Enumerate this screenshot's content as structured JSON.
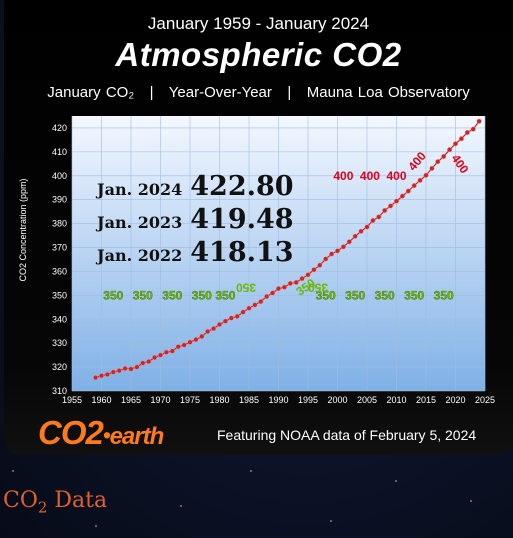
{
  "header": {
    "date_range": "January 1959 - January 2024",
    "title": "Atmospheric",
    "title_co2": "CO2",
    "subtitle": "January CO₂   |   Year-Over-Year   |   Mauna Loa Observatory"
  },
  "callouts": [
    {
      "label": "Jan. 2024",
      "value": "422.80"
    },
    {
      "label": "Jan. 2023",
      "value": "419.48"
    },
    {
      "label": "Jan. 2022",
      "value": "418.13"
    }
  ],
  "markers": {
    "green_value": "350",
    "red_value": "400"
  },
  "branding": {
    "logo_main": "CO2",
    "logo_sep": "•",
    "logo_tail": "earth",
    "featuring": "Featuring NOAA data of February 5, 2024"
  },
  "footer": {
    "label": "CO",
    "label_sub": "2",
    "label_tail": " Data"
  },
  "colors": {
    "accent_orange": "#ff7a1a",
    "series": "#c62828",
    "marker_green": "#6bb800",
    "marker_red": "#e0001a",
    "plot_top": "#f4f8ff",
    "plot_bottom": "#7fb0e6"
  },
  "chart_data": {
    "type": "line",
    "xlabel": "",
    "ylabel": "CO2 Concentration (ppm)",
    "xlim": [
      1955,
      2025
    ],
    "ylim": [
      310,
      425
    ],
    "xticks": [
      1955,
      1960,
      1965,
      1970,
      1975,
      1980,
      1985,
      1990,
      1995,
      2000,
      2005,
      2010,
      2015,
      2020,
      2025
    ],
    "yticks": [
      310,
      320,
      330,
      340,
      350,
      360,
      370,
      380,
      390,
      400,
      410,
      420
    ],
    "grid": true,
    "series": [
      {
        "x": [
          1959,
          1960,
          1961,
          1962,
          1963,
          1964,
          1965,
          1966,
          1967,
          1968,
          1969,
          1970,
          1971,
          1972,
          1973,
          1974,
          1975,
          1976,
          1977,
          1978,
          1979,
          1980,
          1981,
          1982,
          1983,
          1984,
          1985,
          1986,
          1987,
          1988,
          1989,
          1990,
          1991,
          1992,
          1993,
          1994,
          1995,
          1996,
          1997,
          1998,
          1999,
          2000,
          2001,
          2002,
          2003,
          2004,
          2005,
          2006,
          2007,
          2008,
          2009,
          2010,
          2011,
          2012,
          2013,
          2014,
          2015,
          2016,
          2017,
          2018,
          2019,
          2020,
          2021,
          2022,
          2023,
          2024
        ],
        "values": [
          315.6,
          316.4,
          316.9,
          317.9,
          318.5,
          319.4,
          319.2,
          320.0,
          321.7,
          322.3,
          324.0,
          325.0,
          326.2,
          326.7,
          328.5,
          329.2,
          330.4,
          331.5,
          332.8,
          334.9,
          336.1,
          337.8,
          339.2,
          340.5,
          341.2,
          343.0,
          344.6,
          346.0,
          347.4,
          349.5,
          351.0,
          352.8,
          353.4,
          355.0,
          355.4,
          357.0,
          358.6,
          360.7,
          362.6,
          365.2,
          367.3,
          368.6,
          370.3,
          372.4,
          374.7,
          376.8,
          378.6,
          381.3,
          382.8,
          385.5,
          387.4,
          389.4,
          391.5,
          393.6,
          395.9,
          398.1,
          400.2,
          403.1,
          405.9,
          408.1,
          410.9,
          413.4,
          415.5,
          418.1,
          419.5,
          422.8
        ]
      }
    ],
    "annotations": [
      {
        "text": "Jan. 2024  422.80"
      },
      {
        "text": "Jan. 2023  419.48"
      },
      {
        "text": "Jan. 2022  418.13"
      },
      {
        "text": "350"
      },
      {
        "text": "400"
      }
    ]
  }
}
